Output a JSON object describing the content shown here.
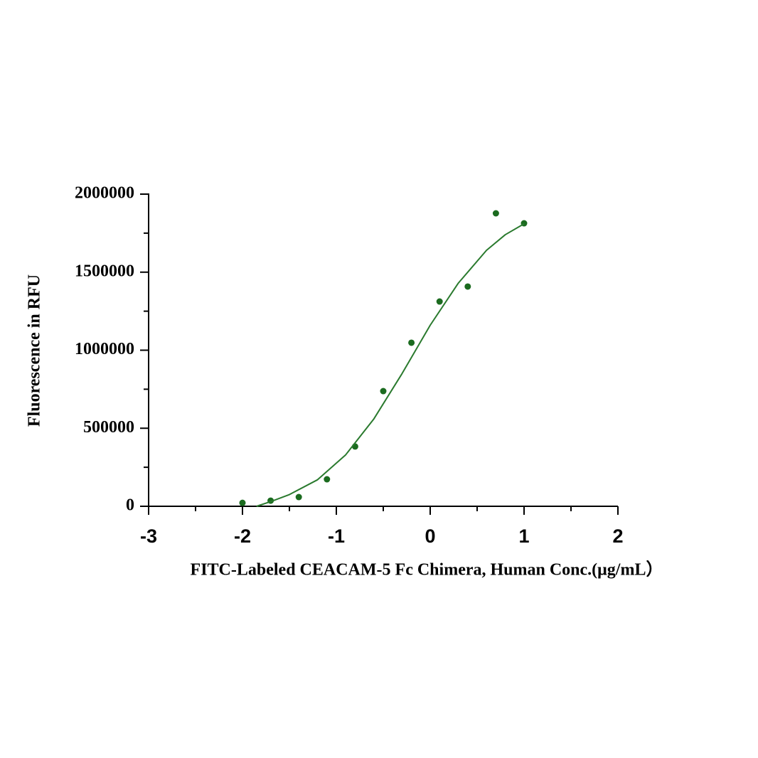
{
  "chart_data": {
    "type": "scatter",
    "x_label": "FITC-Labeled CEACAM-5 Fc Chimera, Human Conc.(μg/mL）",
    "y_label": "Fluorescence in RFU",
    "xlim": [
      -3,
      2
    ],
    "xticks": [
      -3,
      -2,
      -1,
      0,
      1,
      2
    ],
    "minor_xticks": [
      -2.5,
      -1.5,
      -0.5,
      0.5,
      1.5
    ],
    "ylim": [
      0,
      2000000
    ],
    "yticks": [
      0,
      500000,
      1000000,
      1500000,
      2000000
    ],
    "minor_yticks": [
      250000,
      750000,
      1250000,
      1750000
    ],
    "series": [
      {
        "kind": "points",
        "color": "#1b6b1f",
        "x": [
          -2,
          -1.7,
          -1.4,
          -1.1,
          -0.8,
          -0.5,
          -0.2,
          0.1,
          0.4,
          0.7,
          1.0
        ],
        "values": [
          22000,
          36000,
          59000,
          173000,
          383000,
          738000,
          1048000,
          1312000,
          1408000,
          1877000,
          1813000
        ]
      },
      {
        "kind": "fit",
        "color": "#2a7a2e",
        "x": [
          -1.85,
          -1.7,
          -1.5,
          -1.2,
          -0.9,
          -0.6,
          -0.3,
          0,
          0.3,
          0.6,
          0.8,
          1.0
        ],
        "values": [
          0,
          30000,
          75000,
          170000,
          330000,
          560000,
          850000,
          1160000,
          1430000,
          1640000,
          1740000,
          1810000
        ]
      }
    ]
  }
}
